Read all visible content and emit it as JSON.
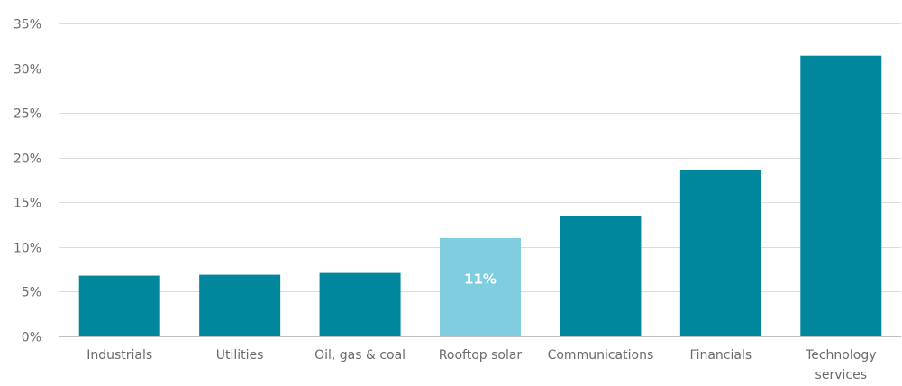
{
  "chart_data": {
    "type": "bar",
    "title": "",
    "xlabel": "",
    "ylabel": "",
    "categories": [
      "Industrials",
      "Utilities",
      "Oil, gas & coal",
      "Rooftop solar",
      "Communications",
      "Financials",
      "Technology services"
    ],
    "category_lines": [
      [
        "Industrials"
      ],
      [
        "Utilities"
      ],
      [
        "Oil, gas & coal"
      ],
      [
        "Rooftop solar"
      ],
      [
        "Communications"
      ],
      [
        "Financials"
      ],
      [
        "Technology",
        "services"
      ]
    ],
    "values": [
      6.8,
      6.9,
      7.1,
      11,
      13.5,
      18.6,
      31.4
    ],
    "data_labels": [
      null,
      null,
      null,
      "11%",
      null,
      null,
      null
    ],
    "highlight_index": 3,
    "ylim": [
      0,
      35
    ],
    "yticks": [
      "0%",
      "5%",
      "10%",
      "15%",
      "20%",
      "25%",
      "30%",
      "35%"
    ],
    "ytick_values": [
      0,
      5,
      10,
      15,
      20,
      25,
      30,
      35
    ],
    "grid": true,
    "legend": "none",
    "colors": {
      "bar": "#00879e",
      "highlight": "#80cde0",
      "grid": "#dcdcdc",
      "text": "#6b6b6b",
      "label": "#ffffff"
    }
  }
}
